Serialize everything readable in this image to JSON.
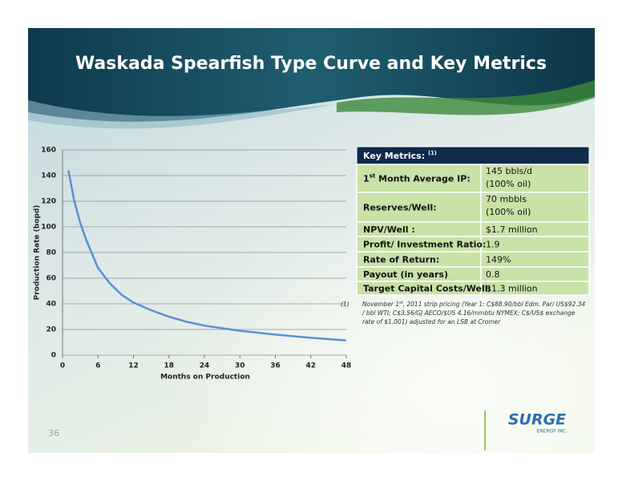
{
  "title": "Waskada Spearfish Type Curve and Key Metrics",
  "chart_data": {
    "type": "line",
    "x": [
      1,
      2,
      3,
      4,
      5,
      6,
      8,
      10,
      12,
      15,
      18,
      21,
      24,
      30,
      36,
      42,
      48
    ],
    "y": [
      144,
      120,
      103,
      90,
      79,
      68,
      56,
      47,
      41,
      35,
      30,
      26,
      23,
      19,
      16,
      13.5,
      11.5
    ],
    "color": "#5b8fd6",
    "xlim": [
      0,
      48
    ],
    "xticks": [
      0,
      6,
      12,
      18,
      24,
      30,
      36,
      42,
      48
    ],
    "ylim": [
      0,
      160
    ],
    "yticks": [
      0,
      20,
      40,
      60,
      80,
      100,
      120,
      140,
      160
    ],
    "grid": true,
    "xlabel": "Months on Production",
    "ylabel": "Production Rate (bopd)"
  },
  "table": {
    "header": {
      "text": "Key Metrics:",
      "sup": "(1)"
    },
    "rows": [
      {
        "label": {
          "pre": "1",
          "sup": "st",
          "post": " Month Average IP:"
        },
        "value": [
          "145 bbls/d",
          "(100% oil)"
        ]
      },
      {
        "label": "Reserves/Well:",
        "value": [
          "70 mbbls",
          "(100% oil)"
        ]
      },
      {
        "label": "NPV/Well :",
        "value": [
          "$1.7 million"
        ]
      },
      {
        "label": "Profit/ Investment Ratio:",
        "value": [
          "1.9"
        ]
      },
      {
        "label": "Rate of Return:",
        "value": [
          "149%"
        ]
      },
      {
        "label": "Payout (in years)",
        "value": [
          "0.8"
        ]
      },
      {
        "label": "Target Capital Costs/Well:",
        "value": [
          "$1.3 million"
        ]
      }
    ]
  },
  "footnote": {
    "marker": "(1)",
    "lines": [
      {
        "pre": "November 1",
        "sup": "st",
        "post": ", 2011 strip pricing (Year 1: C$88.90/bbl Edm. Par/ US$92.34"
      },
      "/ bbl WTI; C$3.56/GJ AECO/$US 4.16/mmbtu NYMEX; C$/US$ exchange",
      "rate of $1.001) adjusted for an LSB at Cromer"
    ]
  },
  "page_number": "36",
  "logo": {
    "name": "SURGE",
    "sub": "ENERGY INC."
  }
}
